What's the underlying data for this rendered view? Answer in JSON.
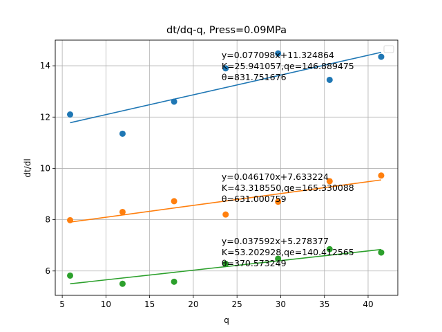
{
  "chart_data": {
    "type": "scatter",
    "title": "dt/dq-q, Press=0.09MPa",
    "xlabel": "q",
    "ylabel": "dt/dl",
    "xlim": [
      4.2,
      43.4
    ],
    "ylim": [
      5.05,
      15.0
    ],
    "xticks": [
      5,
      10,
      15,
      20,
      25,
      30,
      35,
      40
    ],
    "yticks": [
      6,
      8,
      10,
      12,
      14
    ],
    "grid": true,
    "legend": "top-right (empty)",
    "series": [
      {
        "color": "#1f77b4",
        "x": [
          5.9,
          11.9,
          17.8,
          23.7,
          29.7,
          35.6,
          41.5
        ],
        "y": [
          12.1,
          11.35,
          12.6,
          13.9,
          14.48,
          13.45,
          14.35
        ],
        "fit": {
          "slope": 0.077098,
          "intercept": 11.324864,
          "x_range": [
            5.9,
            41.5
          ]
        },
        "annotation": [
          "y=0.077098x+11.324864",
          "K=25.941057,qe=146.889475",
          "θ=831.751676"
        ]
      },
      {
        "color": "#ff7f0e",
        "x": [
          5.9,
          11.9,
          17.8,
          23.7,
          29.7,
          35.6,
          41.5
        ],
        "y": [
          7.98,
          8.3,
          8.72,
          8.2,
          8.7,
          9.5,
          9.72
        ],
        "fit": {
          "slope": 0.04617,
          "intercept": 7.633224,
          "x_range": [
            5.9,
            41.5
          ]
        },
        "annotation": [
          "y=0.046170x+7.633224",
          "K=43.318550,qe=165.330088",
          "θ=631.000759"
        ]
      },
      {
        "color": "#2ca02c",
        "x": [
          5.9,
          11.9,
          17.8,
          23.7,
          29.7,
          35.6,
          41.5
        ],
        "y": [
          5.82,
          5.5,
          5.58,
          6.28,
          6.48,
          6.85,
          6.72
        ],
        "fit": {
          "slope": 0.037592,
          "intercept": 5.278377,
          "x_range": [
            5.9,
            41.5
          ]
        },
        "annotation": [
          "y=0.037592x+5.278377",
          "K=53.202928,qe=140.412565",
          "θ=370.573249"
        ]
      }
    ]
  }
}
